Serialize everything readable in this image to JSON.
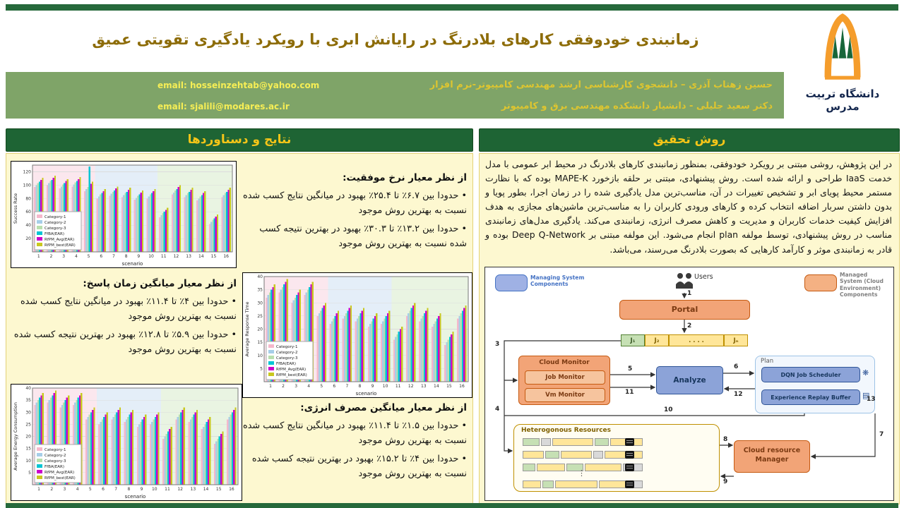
{
  "header": {
    "title": "زمانبندی خودوفقی کارهای بلادرنگ در رایانش ابری با رویکرد یادگیری تقویتی عمیق",
    "authors": [
      {
        "name": "حسین زهتاب آذری – دانشجوی کارشناسی ارشد مهندسی کامپیوتر-نرم افزار",
        "email": "email: hosseinzehtab@yahoo.com"
      },
      {
        "name": "دکتر سعید جلیلی - دانشیار دانشکده مهندسی برق و کامپیوتر",
        "email": "email: sjalili@modares.ac.ir"
      }
    ],
    "logo_caption": "دانشگاه تربیت مدرس"
  },
  "method": {
    "heading": "روش تحقیق",
    "paragraph": "در این پژوهش، روشی مبتنی بر رویکرد خودوفقی، بمنظور زمانبندی کارهای بلادرنگ در محیط ابر عمومی با مدل خدمت IaaS طراحی و ارائه شده است. روش پیشنهادی، مبتنی بر حلقه بازخورد MAPE-K بوده که با نظارت مستمر محیط پویای ابر و تشخیص تغییرات در آن، مناسب‌ترین مدل یادگیری شده را در زمان اجرا، بطور پویا و بدون داشتن سربار اضافه انتخاب کرده و کارهای ورودی کاربران را به مناسب‌ترین ماشین‌های مجازی به هدف افزایش کیفیت خدمات کاربران و مدیریت و کاهش مصرف انرژی، زمانبندی می‌کند. یادگیری مدل‌های زمانبندی مناسب در روش پیشنهادی، توسط مولفه plan انجام می‌شود. این مولفه مبتنی بر Deep Q-Network بوده و قادر به زمانبندی موثر و کارآمد کارهایی که بصورت بلادرنگ می‌رسند، می‌باشد."
  },
  "diagram": {
    "legend_managing": "Managing System Components",
    "legend_managed": "Managed System (Cloud Environment) Components",
    "users_label": "Users",
    "portal": "Portal",
    "queue": {
      "j1": "J₁",
      "j2": "J₂",
      "dots": ". . . .",
      "jn": "Jₙ"
    },
    "cloud_monitor": "Cloud Monitor",
    "job_monitor": "Job Monitor",
    "vm_monitor": "Vm Monitor",
    "analyze": "Analyze",
    "plan": "Plan",
    "dqn": "DQN Job Scheduler",
    "erb": "Experience Replay Buffer",
    "resources": "Heterogonous Resources",
    "crm": "Cloud resource Manager",
    "numbers": [
      "1",
      "2",
      "3",
      "4",
      "5",
      "6",
      "7",
      "8",
      "9",
      "10",
      "11",
      "12",
      "13"
    ]
  },
  "results": {
    "heading": "نتایج و دستاوردها",
    "blocks": [
      {
        "title": "از نظر معیار نرخ موفقیت:",
        "bullets": [
          "• حدودا بین ۶.۷٪ تا ۲۵.۴٪ بهبود در میانگین نتایج کسب شده نسبت به بهترین روش موجود",
          "• حدودا بین ۱۳.۲٪ تا ۳۰.۳٪ بهبود در بهترین نتیجه کسب شده نسبت به بهترین روش موجود"
        ]
      },
      {
        "title": "از نظر معیار میانگین زمان پاسخ:",
        "bullets": [
          "• حدودا بین ۴٪ تا ۱۱.۴٪ بهبود در میانگین نتایج کسب شده نسبت به بهترین روش موجود",
          "• حدودا بین ۵.۹٪ تا ۱۲.۸٪ بهبود در بهترین نتیجه کسب شده نسبت به بهترین روش موجود"
        ]
      },
      {
        "title": "از نظر معیار میانگین مصرف انرژی:",
        "bullets": [
          "• حدودا بین ۱.۵٪ تا ۱۱.۴٪ بهبود در میانگین نتایج کسب شده نسبت به بهترین روش موجود",
          "• حدودا بین ۴٪ تا ۱۵.۲٪ بهبود در بهترین نتیجه کسب شده نسبت به بهترین روش موجود"
        ]
      }
    ]
  },
  "chart_data": [
    {
      "type": "bar",
      "title": "",
      "xlabel": "scenario",
      "ylabel": "Success Rate",
      "ylim": [
        0,
        130
      ],
      "ytick": 20,
      "categories": [
        "1",
        "2",
        "3",
        "4",
        "5",
        "6",
        "7",
        "8",
        "9",
        "10",
        "11",
        "12",
        "13",
        "14",
        "15",
        "16"
      ],
      "bands": [
        {
          "from": 1,
          "to": 5,
          "color": "#fbe7ee"
        },
        {
          "from": 6,
          "to": 10,
          "color": "#e4eef8"
        },
        {
          "from": 11,
          "to": 16,
          "color": "#e9f4e2"
        }
      ],
      "series": [
        {
          "name": "Category-1",
          "color": "#f5b8cb",
          "values": [
            97,
            100,
            95,
            98,
            91,
            80,
            84,
            82,
            78,
            80,
            52,
            86,
            82,
            77,
            42,
            82
          ]
        },
        {
          "name": "Category-2",
          "color": "#a6cee8",
          "values": [
            100,
            103,
            98,
            101,
            94,
            83,
            87,
            85,
            81,
            83,
            55,
            89,
            85,
            80,
            45,
            85
          ]
        },
        {
          "name": "Category-3",
          "color": "#b8dfae",
          "values": [
            103,
            106,
            101,
            104,
            97,
            86,
            90,
            88,
            84,
            86,
            58,
            92,
            88,
            83,
            48,
            88
          ]
        },
        {
          "name": "FfBA(EAR)",
          "color": "#00c5d4",
          "values": [
            105,
            108,
            103,
            106,
            128,
            88,
            92,
            90,
            86,
            88,
            60,
            94,
            90,
            85,
            50,
            90
          ]
        },
        {
          "name": "RfPM_Avg(EAR)",
          "color": "#cc00cc",
          "values": [
            108,
            111,
            106,
            109,
            102,
            91,
            95,
            93,
            89,
            91,
            63,
            97,
            93,
            88,
            53,
            93
          ]
        },
        {
          "name": "RfPM_best(EAR)",
          "color": "#c9c81f",
          "values": [
            111,
            114,
            109,
            112,
            105,
            94,
            98,
            96,
            92,
            94,
            66,
            100,
            96,
            91,
            56,
            96
          ]
        }
      ]
    },
    {
      "type": "bar",
      "title": "",
      "xlabel": "scenario",
      "ylabel": "Average Response Time",
      "ylim": [
        0,
        40
      ],
      "ytick": 5,
      "categories": [
        "1",
        "2",
        "3",
        "4",
        "5",
        "6",
        "7",
        "8",
        "9",
        "10",
        "11",
        "12",
        "13",
        "14",
        "15",
        "16"
      ],
      "bands": [
        {
          "from": 1,
          "to": 5,
          "color": "#fbe7ee"
        },
        {
          "from": 6,
          "to": 10,
          "color": "#e4eef8"
        },
        {
          "from": 11,
          "to": 16,
          "color": "#e9f4e2"
        }
      ],
      "series": [
        {
          "name": "Category-1",
          "color": "#f5b8cb",
          "values": [
            32,
            34,
            30,
            33,
            25,
            22,
            24,
            23,
            21,
            22,
            16,
            25,
            23,
            21,
            14,
            24
          ]
        },
        {
          "name": "Category-2",
          "color": "#a6cee8",
          "values": [
            33,
            35,
            31,
            34,
            26,
            23,
            25,
            24,
            22,
            23,
            17,
            26,
            24,
            22,
            15,
            25
          ]
        },
        {
          "name": "Category-3",
          "color": "#b8dfae",
          "values": [
            34,
            36,
            32,
            35,
            27,
            24,
            26,
            25,
            23,
            24,
            18,
            27,
            25,
            23,
            16,
            26
          ]
        },
        {
          "name": "FfBA(EAR)",
          "color": "#00c5d4",
          "values": [
            35,
            37,
            33,
            36,
            28,
            25,
            27,
            26,
            24,
            25,
            19,
            28,
            26,
            24,
            17,
            27
          ]
        },
        {
          "name": "RfPM_Avg(EAR)",
          "color": "#cc00cc",
          "values": [
            36,
            38,
            34,
            37,
            29,
            26,
            28,
            27,
            25,
            26,
            20,
            29,
            27,
            25,
            18,
            28
          ]
        },
        {
          "name": "RfPM_best(EAR)",
          "color": "#c9c81f",
          "values": [
            37,
            39,
            35,
            38,
            30,
            27,
            29,
            28,
            26,
            27,
            21,
            30,
            28,
            26,
            19,
            29
          ]
        }
      ]
    },
    {
      "type": "bar",
      "title": "",
      "xlabel": "scenario",
      "ylabel": "Average Energy Consumption",
      "ylim": [
        0,
        40
      ],
      "ytick": 5,
      "categories": [
        "1",
        "2",
        "3",
        "4",
        "5",
        "6",
        "7",
        "8",
        "9",
        "10",
        "11",
        "12",
        "13",
        "14",
        "15",
        "16"
      ],
      "bands": [
        {
          "from": 1,
          "to": 5,
          "color": "#fbe7ee"
        },
        {
          "from": 6,
          "to": 10,
          "color": "#e4eef8"
        },
        {
          "from": 11,
          "to": 16,
          "color": "#e9f4e2"
        }
      ],
      "series": [
        {
          "name": "Category-1",
          "color": "#f5b8cb",
          "values": [
            33,
            34,
            32,
            33,
            27,
            25,
            27,
            26,
            24,
            25,
            19,
            27,
            26,
            23,
            17,
            27
          ]
        },
        {
          "name": "Category-2",
          "color": "#a6cee8",
          "values": [
            34,
            35,
            33,
            34,
            28,
            26,
            28,
            27,
            25,
            26,
            20,
            28,
            27,
            24,
            18,
            28
          ]
        },
        {
          "name": "Category-3",
          "color": "#b8dfae",
          "values": [
            35,
            36,
            34,
            35,
            29,
            27,
            29,
            28,
            26,
            27,
            21,
            29,
            28,
            25,
            19,
            29
          ]
        },
        {
          "name": "FfBA(EAR)",
          "color": "#00c5d4",
          "values": [
            36,
            37,
            35,
            36,
            30,
            28,
            30,
            29,
            27,
            28,
            22,
            30,
            29,
            26,
            20,
            30
          ]
        },
        {
          "name": "RfPM_Avg(EAR)",
          "color": "#cc00cc",
          "values": [
            37,
            38,
            36,
            37,
            31,
            29,
            31,
            30,
            28,
            29,
            23,
            31,
            30,
            27,
            21,
            31
          ]
        },
        {
          "name": "RfPM_best(EAR)",
          "color": "#c9c81f",
          "values": [
            38,
            39,
            37,
            38,
            32,
            30,
            32,
            31,
            29,
            30,
            24,
            32,
            31,
            28,
            22,
            32
          ]
        }
      ]
    }
  ]
}
